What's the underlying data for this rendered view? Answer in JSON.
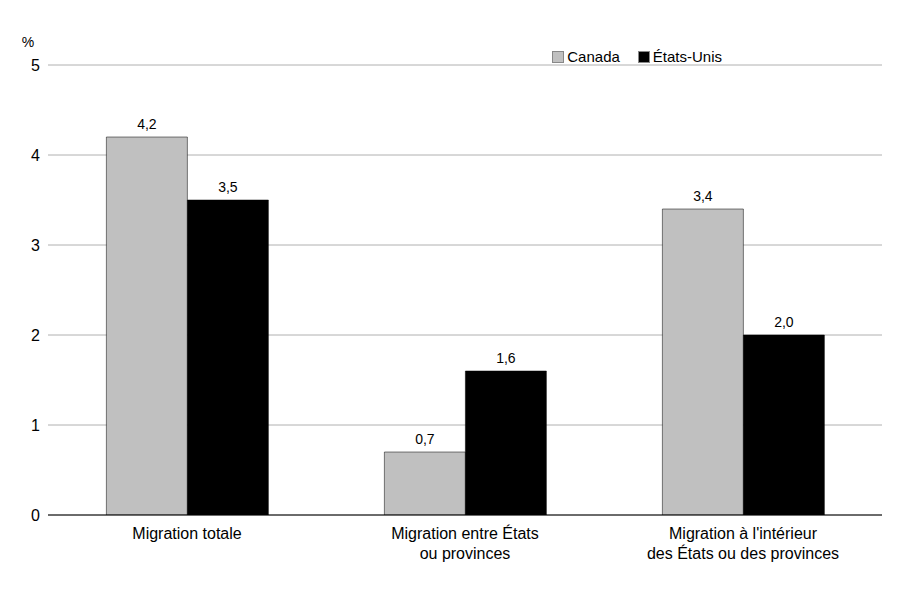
{
  "chart_data": {
    "type": "bar",
    "y_label": "%",
    "categories": [
      "Migration totale",
      "Migration entre États\nou provinces",
      "Migration à l'intérieur\ndes États ou des provinces"
    ],
    "series": [
      {
        "name": "Canada",
        "color": "#c0c0c0",
        "values": [
          4.2,
          0.7,
          3.4
        ],
        "value_labels": [
          "4,2",
          "0,7",
          "3,4"
        ]
      },
      {
        "name": "États-Unis",
        "color": "#000000",
        "values": [
          3.5,
          1.6,
          2.0
        ],
        "value_labels": [
          "3,5",
          "1,6",
          "2,0"
        ]
      }
    ],
    "ylim": [
      0,
      5
    ],
    "yticks": [
      0,
      1,
      2,
      3,
      4,
      5
    ],
    "grid": true,
    "legend": "upper right",
    "data_labels": true
  }
}
